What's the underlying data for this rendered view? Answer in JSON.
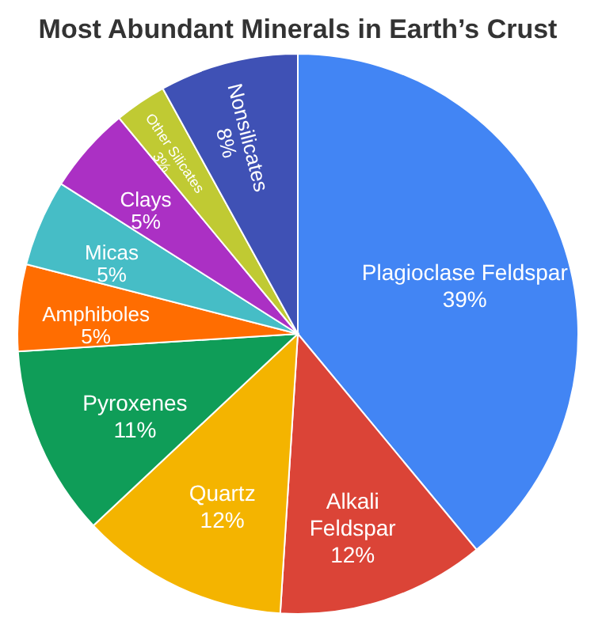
{
  "chart_data": {
    "type": "pie",
    "title": "Most Abundant Minerals in Earth’s Crust",
    "categories": [
      "Plagioclase Feldspar",
      "Alkali Feldspar",
      "Quartz",
      "Pyroxenes",
      "Amphiboles",
      "Micas",
      "Clays",
      "Other Silicates",
      "Nonsilicates"
    ],
    "values": [
      39,
      12,
      12,
      11,
      5,
      5,
      5,
      3,
      8
    ],
    "colors": [
      "#4285f4",
      "#db4437",
      "#f4b400",
      "#0f9d58",
      "#ff6d01",
      "#46bdc6",
      "#ab30c4",
      "#c0ca33",
      "#3f51b5"
    ],
    "value_labels": [
      "39%",
      "12%",
      "12%",
      "11%",
      "5%",
      "5%",
      "5%",
      "3%",
      "8%"
    ],
    "legend": false
  }
}
